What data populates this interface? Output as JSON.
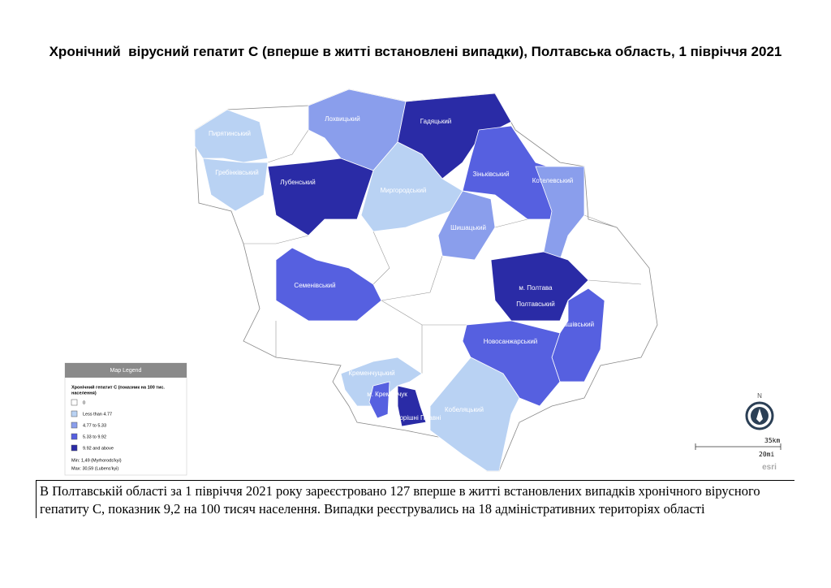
{
  "title": "Хронічний  вірусний гепатит С (вперше в житті встановлені випадки), Полтавська область, 1 півріччя 2021",
  "regions": [
    {
      "label": "Пирятинський",
      "color": "#b9d2f3"
    },
    {
      "label": "Гребінківський",
      "color": "#b9d2f3"
    },
    {
      "label": "Лохвицький",
      "color": "#8a9eec"
    },
    {
      "label": "Гадяцький",
      "color": "#2a2ba6"
    },
    {
      "label": "Лубенський",
      "color": "#2a2ba6"
    },
    {
      "label": "Миргородський",
      "color": "#b9d2f3"
    },
    {
      "label": "Зіньківський",
      "color": "#5660e0"
    },
    {
      "label": "Котелевський",
      "color": "#8a9eec"
    },
    {
      "label": "Шишацький",
      "color": "#8a9eec"
    },
    {
      "label": "Семенівський",
      "color": "#5660e0"
    },
    {
      "label": "м. Полтава",
      "sublabel": "Полтавський",
      "color": "#2a2ba6"
    },
    {
      "label": "Машівський",
      "color": "#5660e0"
    },
    {
      "label": "Новосанжарський",
      "color": "#5660e0"
    },
    {
      "label": "Кременчуцький",
      "color": "#b9d2f3"
    },
    {
      "label": "м. Кременчук",
      "color": "#5660e0"
    },
    {
      "label": "м. Горішні Плавні",
      "color": "#2a2ba6"
    },
    {
      "label": "Кобеляцький",
      "color": "#b9d2f3"
    }
  ],
  "legend": {
    "header": "Map Legend",
    "title": "Хронічний гепатит С (показник на 100 тис.",
    "title_line2": "населення)",
    "items": [
      {
        "label": "0",
        "color": "#ffffff"
      },
      {
        "label": "Less than 4.77",
        "color": "#b9d2f3"
      },
      {
        "label": "4.77 to 5.33",
        "color": "#8a9eec"
      },
      {
        "label": "5.33 to 9.92",
        "color": "#5660e0"
      },
      {
        "label": "9.92 and above",
        "color": "#2a2ba6"
      }
    ],
    "min": "Min: 1,49 (Myrhorods'kyi)",
    "max": "Max: 30,59 (Lubens'kyi)"
  },
  "north": "N",
  "scale": {
    "km": "35km",
    "mi": "20mi"
  },
  "credit": "esri",
  "description": "В Полтавській області за 1 півріччя 2021 року зареєстровано 127 вперше в житті встановлених випадків хронічного вірусного гепатиту С, показник 9,2 на 100 тисяч населення. Випадки реєструвались на 18 адміністративних територіях області"
}
